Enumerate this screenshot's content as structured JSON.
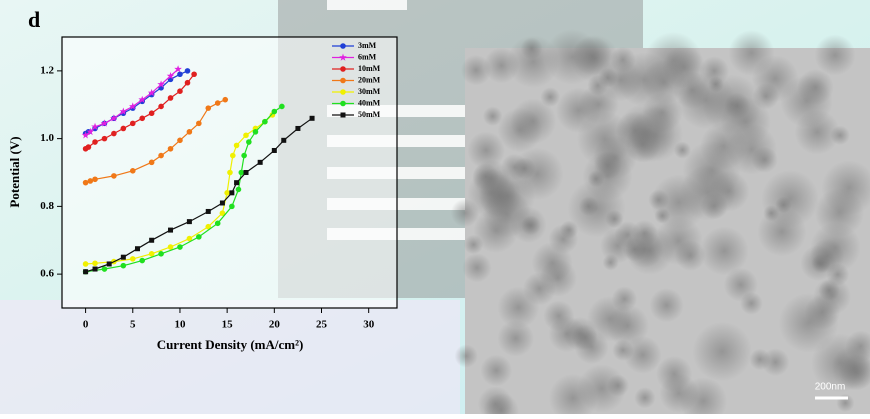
{
  "chart_data": {
    "type": "line",
    "panel_label": "d",
    "xlabel": "Current Density (mA/cm²)",
    "ylabel": "Potential (V)",
    "xlim": [
      -2.5,
      33
    ],
    "xticks": [
      0,
      5,
      10,
      15,
      20,
      25,
      30
    ],
    "ylim": [
      0.5,
      1.3
    ],
    "yticks": [
      0.6,
      0.8,
      {
        "value": 1.0,
        "label": "1.0"
      },
      1.2
    ],
    "legend": "upper right",
    "series": [
      {
        "name": "3mM",
        "color": "#1f3fd6",
        "marker": "circle",
        "x": [
          0,
          0.3,
          1,
          2,
          3,
          4,
          5,
          6,
          7,
          8,
          9,
          10,
          10.8
        ],
        "values": [
          1.015,
          1.02,
          1.03,
          1.045,
          1.06,
          1.075,
          1.09,
          1.11,
          1.13,
          1.15,
          1.175,
          1.19,
          1.2
        ]
      },
      {
        "name": "6mM",
        "color": "#e020e0",
        "marker": "star",
        "x": [
          0,
          0.5,
          1,
          2,
          3,
          4,
          5,
          6,
          7,
          8,
          9,
          9.8
        ],
        "values": [
          1.01,
          1.02,
          1.035,
          1.045,
          1.06,
          1.08,
          1.095,
          1.115,
          1.135,
          1.16,
          1.185,
          1.205
        ]
      },
      {
        "name": "10mM",
        "color": "#e02020",
        "marker": "circle",
        "x": [
          0,
          0.3,
          1,
          2,
          3,
          4,
          5,
          6,
          7,
          8,
          9,
          10,
          10.8,
          11.5
        ],
        "values": [
          0.97,
          0.975,
          0.99,
          1.0,
          1.015,
          1.03,
          1.045,
          1.06,
          1.075,
          1.095,
          1.12,
          1.14,
          1.165,
          1.19
        ]
      },
      {
        "name": "20mM",
        "color": "#f07818",
        "marker": "circle",
        "x": [
          0,
          0.5,
          1,
          3,
          5,
          7,
          8,
          9,
          10,
          11,
          12,
          13,
          14,
          14.8
        ],
        "values": [
          0.87,
          0.875,
          0.88,
          0.89,
          0.905,
          0.93,
          0.95,
          0.97,
          0.995,
          1.02,
          1.045,
          1.09,
          1.105,
          1.115
        ]
      },
      {
        "name": "30mM",
        "color": "#f0f000",
        "marker": "circle",
        "x": [
          0,
          1,
          3,
          5,
          7,
          9,
          11,
          13,
          14.5,
          15,
          15.3,
          15.6,
          16,
          17,
          18,
          19,
          19.8
        ],
        "values": [
          0.63,
          0.632,
          0.637,
          0.645,
          0.66,
          0.68,
          0.705,
          0.74,
          0.78,
          0.84,
          0.9,
          0.95,
          0.98,
          1.01,
          1.03,
          1.05,
          1.07
        ]
      },
      {
        "name": "40mM",
        "color": "#20e020",
        "marker": "circle",
        "x": [
          0,
          2,
          4,
          6,
          8,
          10,
          12,
          14,
          15.5,
          16.2,
          16.5,
          16.8,
          17.3,
          18,
          19,
          20,
          20.8
        ],
        "values": [
          0.607,
          0.615,
          0.625,
          0.64,
          0.66,
          0.68,
          0.71,
          0.75,
          0.8,
          0.85,
          0.9,
          0.95,
          0.99,
          1.02,
          1.05,
          1.08,
          1.095
        ]
      },
      {
        "name": "50mM",
        "color": "#111111",
        "marker": "square",
        "x": [
          0,
          1,
          2.5,
          4,
          5.5,
          7,
          9,
          11,
          13,
          14.5,
          15.5,
          16,
          17,
          18.5,
          20,
          21,
          22.5,
          24
        ],
        "values": [
          0.607,
          0.615,
          0.63,
          0.65,
          0.675,
          0.7,
          0.73,
          0.755,
          0.785,
          0.81,
          0.84,
          0.87,
          0.9,
          0.93,
          0.965,
          0.995,
          1.03,
          1.06
        ]
      }
    ]
  },
  "scale_bar": "200nm"
}
